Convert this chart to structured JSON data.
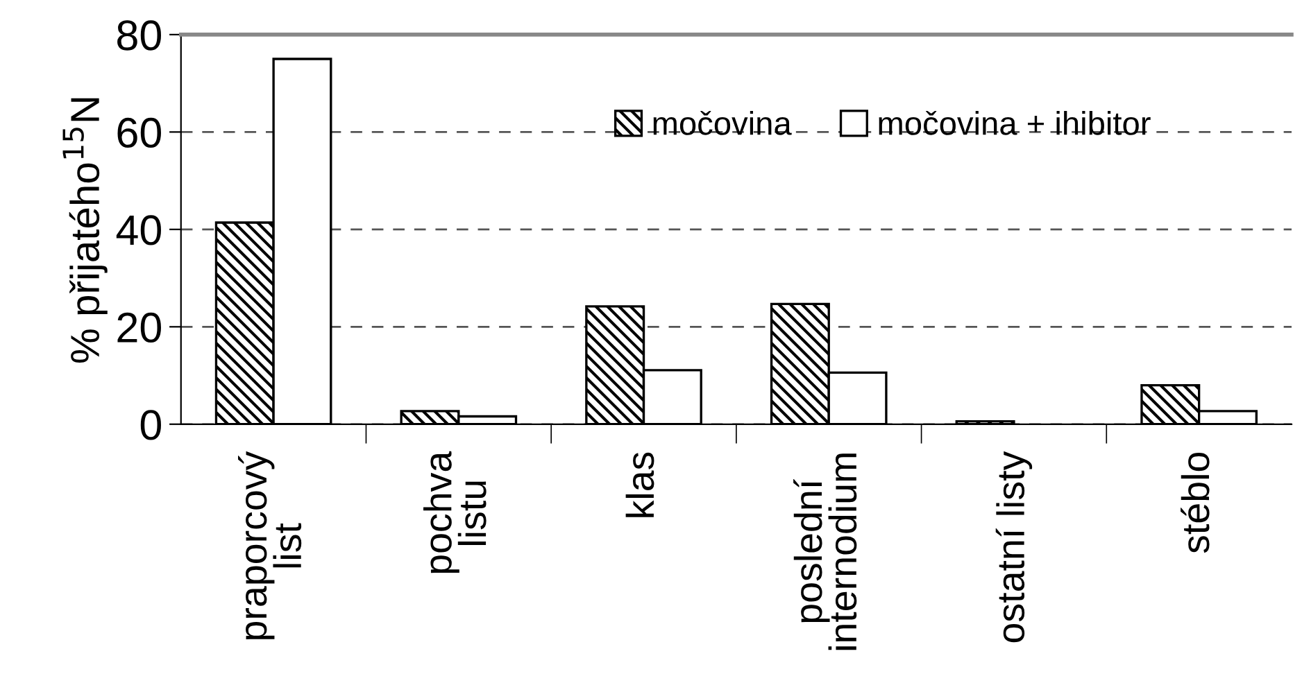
{
  "chart_data": {
    "type": "bar",
    "ylabel": "% přijatého$^{15}$N",
    "categories": [
      "praporcový\nlist",
      "pochva\nlistu",
      "klas",
      "poslední\ninternodium",
      "ostatní listy",
      "stéblo"
    ],
    "series": [
      {
        "name": "močovina",
        "color": "#000000",
        "values": [
          41.4,
          2.7,
          24.2,
          24.7,
          0.6,
          8.0
        ]
      },
      {
        "name": "močovina + ihibitor",
        "color": "#ffffff",
        "values": [
          75.0,
          1.6,
          11.1,
          10.6,
          null,
          2.7
        ]
      }
    ],
    "ylim": [
      0,
      80
    ],
    "yticks": [
      0,
      20,
      40,
      60,
      80
    ],
    "grid": "y",
    "legend": "top right"
  }
}
